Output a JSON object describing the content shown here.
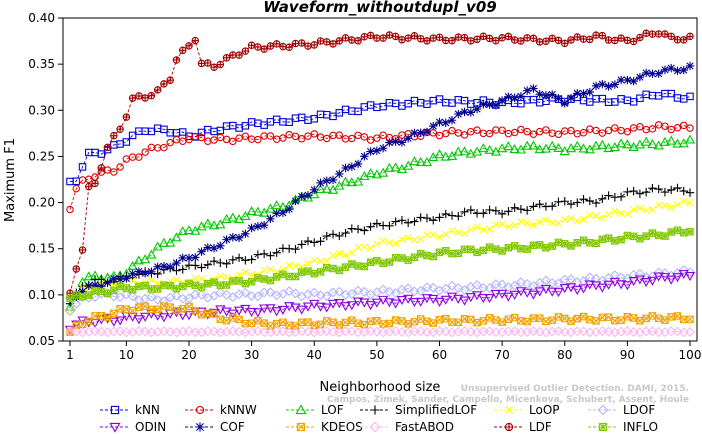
{
  "chart_data": {
    "type": "line",
    "title": "Waveform_withoutdupl_v09",
    "xlabel": "Neighborhood size",
    "ylabel": "Maximum F1",
    "xlim": [
      1,
      100
    ],
    "ylim": [
      0.05,
      0.4
    ],
    "xticks": [
      1,
      10,
      20,
      30,
      40,
      50,
      60,
      70,
      80,
      90,
      100
    ],
    "yticks": [
      0.05,
      0.1,
      0.15,
      0.2,
      0.25,
      0.3,
      0.35,
      0.4
    ],
    "ytick_labels": [
      "0.05",
      "0.10",
      "0.15",
      "0.20",
      "0.25",
      "0.30",
      "0.35",
      "0.40"
    ],
    "grid": false,
    "legend_position": "bottom",
    "credit": [
      "Unsupervised Outlier Detection. DAMI, 2015.",
      "Campos, Zimek, Sander, Campello, Micenkova, Schubert, Assent, Houle"
    ],
    "series": [
      {
        "name": "kNN",
        "color": "#0000dd",
        "marker": "square",
        "anchors": [
          [
            1,
            0.221
          ],
          [
            2,
            0.225
          ],
          [
            3,
            0.24
          ],
          [
            4,
            0.252
          ],
          [
            6,
            0.255
          ],
          [
            8,
            0.26
          ],
          [
            10,
            0.268
          ],
          [
            13,
            0.279
          ],
          [
            17,
            0.278
          ],
          [
            20,
            0.272
          ],
          [
            25,
            0.28
          ],
          [
            30,
            0.285
          ],
          [
            40,
            0.292
          ],
          [
            50,
            0.305
          ],
          [
            60,
            0.31
          ],
          [
            70,
            0.308
          ],
          [
            80,
            0.312
          ],
          [
            90,
            0.31
          ],
          [
            95,
            0.318
          ],
          [
            100,
            0.313
          ]
        ]
      },
      {
        "name": "kNNW",
        "color": "#dd0000",
        "marker": "circle",
        "anchors": [
          [
            1,
            0.195
          ],
          [
            2,
            0.215
          ],
          [
            3,
            0.222
          ],
          [
            5,
            0.23
          ],
          [
            8,
            0.235
          ],
          [
            10,
            0.245
          ],
          [
            13,
            0.255
          ],
          [
            16,
            0.262
          ],
          [
            20,
            0.27
          ],
          [
            25,
            0.268
          ],
          [
            30,
            0.27
          ],
          [
            40,
            0.272
          ],
          [
            50,
            0.27
          ],
          [
            60,
            0.275
          ],
          [
            70,
            0.277
          ],
          [
            80,
            0.276
          ],
          [
            90,
            0.279
          ],
          [
            95,
            0.282
          ],
          [
            100,
            0.281
          ]
        ]
      },
      {
        "name": "LOF",
        "color": "#00c800",
        "marker": "triangle",
        "anchors": [
          [
            1,
            0.085
          ],
          [
            2,
            0.1
          ],
          [
            3,
            0.115
          ],
          [
            5,
            0.12
          ],
          [
            8,
            0.118
          ],
          [
            10,
            0.125
          ],
          [
            13,
            0.14
          ],
          [
            16,
            0.155
          ],
          [
            20,
            0.17
          ],
          [
            25,
            0.178
          ],
          [
            30,
            0.188
          ],
          [
            35,
            0.196
          ],
          [
            40,
            0.21
          ],
          [
            45,
            0.22
          ],
          [
            50,
            0.232
          ],
          [
            55,
            0.24
          ],
          [
            60,
            0.25
          ],
          [
            65,
            0.255
          ],
          [
            70,
            0.258
          ],
          [
            75,
            0.26
          ],
          [
            80,
            0.258
          ],
          [
            90,
            0.262
          ],
          [
            100,
            0.266
          ]
        ]
      },
      {
        "name": "SimplifiedLOF",
        "color": "#000000",
        "marker": "plus",
        "anchors": [
          [
            1,
            0.09
          ],
          [
            2,
            0.1
          ],
          [
            3,
            0.11
          ],
          [
            5,
            0.115
          ],
          [
            8,
            0.115
          ],
          [
            10,
            0.12
          ],
          [
            15,
            0.125
          ],
          [
            20,
            0.13
          ],
          [
            25,
            0.135
          ],
          [
            30,
            0.14
          ],
          [
            35,
            0.148
          ],
          [
            40,
            0.158
          ],
          [
            45,
            0.168
          ],
          [
            50,
            0.175
          ],
          [
            55,
            0.18
          ],
          [
            60,
            0.184
          ],
          [
            65,
            0.19
          ],
          [
            70,
            0.19
          ],
          [
            75,
            0.195
          ],
          [
            80,
            0.2
          ],
          [
            85,
            0.202
          ],
          [
            90,
            0.21
          ],
          [
            95,
            0.214
          ],
          [
            100,
            0.213
          ]
        ]
      },
      {
        "name": "LoOP",
        "color": "#ffff00",
        "marker": "cross",
        "anchors": [
          [
            1,
            0.085
          ],
          [
            2,
            0.095
          ],
          [
            3,
            0.105
          ],
          [
            5,
            0.11
          ],
          [
            8,
            0.112
          ],
          [
            10,
            0.115
          ],
          [
            15,
            0.113
          ],
          [
            20,
            0.115
          ],
          [
            25,
            0.118
          ],
          [
            30,
            0.123
          ],
          [
            35,
            0.128
          ],
          [
            40,
            0.135
          ],
          [
            45,
            0.145
          ],
          [
            50,
            0.155
          ],
          [
            55,
            0.16
          ],
          [
            60,
            0.165
          ],
          [
            65,
            0.17
          ],
          [
            70,
            0.175
          ],
          [
            75,
            0.178
          ],
          [
            80,
            0.18
          ],
          [
            85,
            0.185
          ],
          [
            90,
            0.19
          ],
          [
            95,
            0.195
          ],
          [
            100,
            0.2
          ]
        ]
      },
      {
        "name": "LDOF",
        "color": "#b4b4ff",
        "marker": "diamond",
        "anchors": [
          [
            1,
            0.085
          ],
          [
            2,
            0.09
          ],
          [
            3,
            0.095
          ],
          [
            5,
            0.1
          ],
          [
            8,
            0.1
          ],
          [
            10,
            0.098
          ],
          [
            15,
            0.095
          ],
          [
            20,
            0.098
          ],
          [
            25,
            0.1
          ],
          [
            30,
            0.1
          ],
          [
            35,
            0.102
          ],
          [
            40,
            0.1
          ],
          [
            45,
            0.102
          ],
          [
            50,
            0.103
          ],
          [
            55,
            0.105
          ],
          [
            60,
            0.107
          ],
          [
            65,
            0.108
          ],
          [
            70,
            0.11
          ],
          [
            75,
            0.112
          ],
          [
            80,
            0.115
          ],
          [
            85,
            0.117
          ],
          [
            90,
            0.12
          ],
          [
            95,
            0.122
          ],
          [
            100,
            0.125
          ]
        ]
      },
      {
        "name": "ODIN",
        "color": "#8c00dc",
        "marker": "triangle-down",
        "anchors": [
          [
            1,
            0.065
          ],
          [
            2,
            0.068
          ],
          [
            3,
            0.07
          ],
          [
            5,
            0.072
          ],
          [
            8,
            0.073
          ],
          [
            10,
            0.075
          ],
          [
            15,
            0.078
          ],
          [
            20,
            0.08
          ],
          [
            25,
            0.082
          ],
          [
            30,
            0.083
          ],
          [
            35,
            0.085
          ],
          [
            40,
            0.088
          ],
          [
            45,
            0.09
          ],
          [
            50,
            0.092
          ],
          [
            55,
            0.094
          ],
          [
            60,
            0.095
          ],
          [
            65,
            0.097
          ],
          [
            70,
            0.1
          ],
          [
            75,
            0.103
          ],
          [
            80,
            0.106
          ],
          [
            85,
            0.11
          ],
          [
            90,
            0.113
          ],
          [
            95,
            0.118
          ],
          [
            100,
            0.121
          ]
        ]
      },
      {
        "name": "COF",
        "color": "#00008c",
        "marker": "star",
        "anchors": [
          [
            1,
            0.095
          ],
          [
            2,
            0.1
          ],
          [
            3,
            0.105
          ],
          [
            5,
            0.11
          ],
          [
            8,
            0.115
          ],
          [
            10,
            0.12
          ],
          [
            13,
            0.125
          ],
          [
            16,
            0.13
          ],
          [
            20,
            0.14
          ],
          [
            25,
            0.155
          ],
          [
            30,
            0.17
          ],
          [
            35,
            0.19
          ],
          [
            40,
            0.215
          ],
          [
            45,
            0.235
          ],
          [
            50,
            0.258
          ],
          [
            55,
            0.27
          ],
          [
            60,
            0.285
          ],
          [
            65,
            0.3
          ],
          [
            70,
            0.31
          ],
          [
            75,
            0.322
          ],
          [
            80,
            0.31
          ],
          [
            85,
            0.325
          ],
          [
            90,
            0.332
          ],
          [
            95,
            0.342
          ],
          [
            100,
            0.346
          ]
        ]
      },
      {
        "name": "KDEOS",
        "color": "#f0a000",
        "marker": "square-x",
        "anchors": [
          [
            1,
            0.058
          ],
          [
            2,
            0.065
          ],
          [
            3,
            0.07
          ],
          [
            5,
            0.075
          ],
          [
            8,
            0.08
          ],
          [
            10,
            0.085
          ],
          [
            15,
            0.086
          ],
          [
            20,
            0.085
          ],
          [
            25,
            0.075
          ],
          [
            30,
            0.07
          ],
          [
            35,
            0.068
          ],
          [
            40,
            0.069
          ],
          [
            45,
            0.07
          ],
          [
            50,
            0.07
          ],
          [
            55,
            0.071
          ],
          [
            60,
            0.072
          ],
          [
            65,
            0.072
          ],
          [
            70,
            0.073
          ],
          [
            75,
            0.073
          ],
          [
            80,
            0.074
          ],
          [
            85,
            0.074
          ],
          [
            90,
            0.074
          ],
          [
            95,
            0.075
          ],
          [
            100,
            0.075
          ]
        ]
      },
      {
        "name": "FastABOD",
        "color": "#ffb4f0",
        "marker": "diamond",
        "anchors": [
          [
            1,
            0.06
          ],
          [
            2,
            0.06
          ],
          [
            5,
            0.06
          ],
          [
            10,
            0.06
          ],
          [
            20,
            0.06
          ],
          [
            30,
            0.06
          ],
          [
            40,
            0.06
          ],
          [
            50,
            0.06
          ],
          [
            60,
            0.06
          ],
          [
            70,
            0.06
          ],
          [
            80,
            0.06
          ],
          [
            90,
            0.06
          ],
          [
            100,
            0.06
          ]
        ]
      },
      {
        "name": "LDF",
        "color": "#a00000",
        "marker": "circle-plus",
        "anchors": [
          [
            1,
            0.1
          ],
          [
            2,
            0.13
          ],
          [
            3,
            0.15
          ],
          [
            4,
            0.215
          ],
          [
            5,
            0.22
          ],
          [
            7,
            0.26
          ],
          [
            8,
            0.27
          ],
          [
            9,
            0.28
          ],
          [
            10,
            0.295
          ],
          [
            11,
            0.312
          ],
          [
            13,
            0.315
          ],
          [
            15,
            0.32
          ],
          [
            17,
            0.335
          ],
          [
            18,
            0.355
          ],
          [
            20,
            0.37
          ],
          [
            21,
            0.378
          ],
          [
            22,
            0.35
          ],
          [
            24,
            0.348
          ],
          [
            26,
            0.355
          ],
          [
            28,
            0.362
          ],
          [
            30,
            0.368
          ],
          [
            40,
            0.372
          ],
          [
            50,
            0.38
          ],
          [
            60,
            0.377
          ],
          [
            70,
            0.378
          ],
          [
            80,
            0.375
          ],
          [
            85,
            0.38
          ],
          [
            90,
            0.375
          ],
          [
            95,
            0.385
          ],
          [
            97,
            0.378
          ],
          [
            100,
            0.378
          ]
        ]
      },
      {
        "name": "INFLO",
        "color": "#80c800",
        "marker": "star-square",
        "anchors": [
          [
            1,
            0.095
          ],
          [
            2,
            0.098
          ],
          [
            3,
            0.1
          ],
          [
            5,
            0.102
          ],
          [
            8,
            0.105
          ],
          [
            10,
            0.108
          ],
          [
            15,
            0.108
          ],
          [
            20,
            0.11
          ],
          [
            25,
            0.112
          ],
          [
            30,
            0.115
          ],
          [
            35,
            0.12
          ],
          [
            40,
            0.125
          ],
          [
            45,
            0.13
          ],
          [
            50,
            0.135
          ],
          [
            55,
            0.14
          ],
          [
            60,
            0.145
          ],
          [
            65,
            0.148
          ],
          [
            70,
            0.15
          ],
          [
            75,
            0.152
          ],
          [
            80,
            0.155
          ],
          [
            85,
            0.158
          ],
          [
            90,
            0.162
          ],
          [
            95,
            0.165
          ],
          [
            100,
            0.17
          ]
        ]
      }
    ]
  }
}
